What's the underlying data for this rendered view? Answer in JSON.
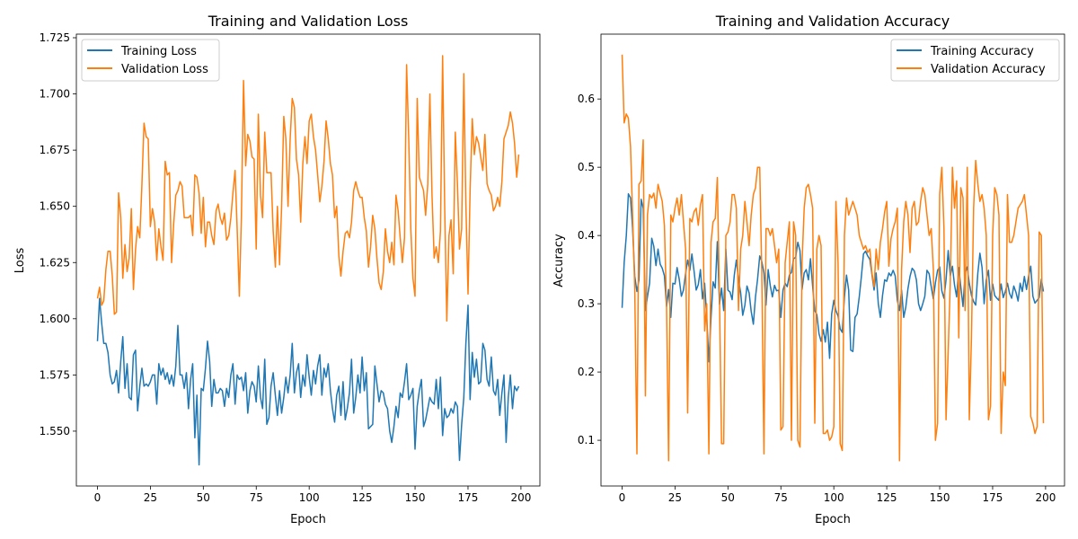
{
  "colors": {
    "training": "#1f77b4",
    "validation": "#ff7f0e"
  },
  "chart_data": [
    {
      "type": "line",
      "title": "Training and Validation Loss",
      "xlabel": "Epoch",
      "ylabel": "Loss",
      "xlim": [
        -9.95,
        208.95
      ],
      "ylim": [
        1.5256,
        1.7266
      ],
      "xticks": [
        0,
        25,
        50,
        75,
        100,
        125,
        150,
        175,
        200
      ],
      "yticks": [
        1.55,
        1.575,
        1.6,
        1.625,
        1.65,
        1.675,
        1.7,
        1.725
      ],
      "ytick_labels": [
        "1.550",
        "1.575",
        "1.600",
        "1.625",
        "1.650",
        "1.675",
        "1.700",
        "1.725"
      ],
      "grid": false,
      "legend": "upper-left",
      "series": [
        {
          "name": "Training Loss",
          "color": "#1f77b4",
          "values": [
            1.59,
            1.609,
            1.598,
            1.589,
            1.589,
            1.585,
            1.575,
            1.571,
            1.572,
            1.577,
            1.567,
            1.581,
            1.592,
            1.569,
            1.58,
            1.565,
            1.564,
            1.584,
            1.586,
            1.559,
            1.57,
            1.578,
            1.57,
            1.571,
            1.57,
            1.572,
            1.575,
            1.575,
            1.562,
            1.58,
            1.575,
            1.578,
            1.573,
            1.576,
            1.571,
            1.575,
            1.57,
            1.579,
            1.597,
            1.575,
            1.575,
            1.569,
            1.576,
            1.56,
            1.573,
            1.58,
            1.547,
            1.566,
            1.535,
            1.569,
            1.568,
            1.578,
            1.59,
            1.581,
            1.561,
            1.573,
            1.567,
            1.567,
            1.569,
            1.568,
            1.561,
            1.569,
            1.565,
            1.575,
            1.58,
            1.562,
            1.575,
            1.573,
            1.574,
            1.568,
            1.576,
            1.558,
            1.568,
            1.572,
            1.57,
            1.563,
            1.579,
            1.565,
            1.56,
            1.582,
            1.553,
            1.556,
            1.57,
            1.576,
            1.566,
            1.557,
            1.568,
            1.558,
            1.565,
            1.574,
            1.567,
            1.575,
            1.589,
            1.567,
            1.576,
            1.58,
            1.565,
            1.575,
            1.57,
            1.584,
            1.574,
            1.566,
            1.577,
            1.571,
            1.579,
            1.584,
            1.566,
            1.578,
            1.574,
            1.58,
            1.568,
            1.56,
            1.554,
            1.566,
            1.57,
            1.557,
            1.572,
            1.555,
            1.56,
            1.567,
            1.582,
            1.558,
            1.565,
            1.575,
            1.567,
            1.583,
            1.568,
            1.576,
            1.551,
            1.552,
            1.553,
            1.579,
            1.571,
            1.563,
            1.568,
            1.567,
            1.562,
            1.56,
            1.55,
            1.545,
            1.552,
            1.561,
            1.556,
            1.567,
            1.565,
            1.572,
            1.58,
            1.564,
            1.566,
            1.569,
            1.542,
            1.561,
            1.568,
            1.573,
            1.552,
            1.555,
            1.56,
            1.565,
            1.563,
            1.562,
            1.573,
            1.56,
            1.574,
            1.548,
            1.56,
            1.556,
            1.557,
            1.56,
            1.558,
            1.563,
            1.561,
            1.537,
            1.553,
            1.565,
            1.589,
            1.606,
            1.564,
            1.585,
            1.574,
            1.582,
            1.571,
            1.572,
            1.589,
            1.586,
            1.573,
            1.57,
            1.583,
            1.568,
            1.566,
            1.573,
            1.557,
            1.567,
            1.575,
            1.545,
            1.565,
            1.575,
            1.56,
            1.57,
            1.568,
            1.57
          ]
        },
        {
          "name": "Validation Loss",
          "color": "#ff7f0e",
          "values": [
            1.609,
            1.614,
            1.606,
            1.608,
            1.622,
            1.63,
            1.63,
            1.619,
            1.602,
            1.603,
            1.656,
            1.645,
            1.618,
            1.633,
            1.621,
            1.627,
            1.649,
            1.613,
            1.631,
            1.641,
            1.636,
            1.66,
            1.687,
            1.681,
            1.68,
            1.641,
            1.649,
            1.643,
            1.626,
            1.64,
            1.632,
            1.626,
            1.67,
            1.664,
            1.665,
            1.625,
            1.642,
            1.655,
            1.657,
            1.661,
            1.659,
            1.645,
            1.645,
            1.645,
            1.646,
            1.637,
            1.664,
            1.663,
            1.656,
            1.638,
            1.654,
            1.632,
            1.643,
            1.643,
            1.637,
            1.633,
            1.648,
            1.651,
            1.645,
            1.642,
            1.647,
            1.635,
            1.637,
            1.645,
            1.656,
            1.666,
            1.64,
            1.61,
            1.645,
            1.706,
            1.668,
            1.682,
            1.679,
            1.672,
            1.671,
            1.631,
            1.691,
            1.655,
            1.645,
            1.683,
            1.665,
            1.665,
            1.665,
            1.639,
            1.623,
            1.65,
            1.624,
            1.65,
            1.69,
            1.68,
            1.65,
            1.68,
            1.698,
            1.694,
            1.671,
            1.664,
            1.643,
            1.669,
            1.681,
            1.669,
            1.688,
            1.691,
            1.681,
            1.675,
            1.664,
            1.652,
            1.659,
            1.67,
            1.688,
            1.68,
            1.669,
            1.664,
            1.645,
            1.65,
            1.628,
            1.619,
            1.63,
            1.638,
            1.639,
            1.636,
            1.643,
            1.657,
            1.661,
            1.657,
            1.654,
            1.654,
            1.645,
            1.639,
            1.623,
            1.632,
            1.646,
            1.64,
            1.627,
            1.616,
            1.613,
            1.621,
            1.64,
            1.63,
            1.625,
            1.634,
            1.624,
            1.655,
            1.648,
            1.636,
            1.625,
            1.636,
            1.713,
            1.68,
            1.64,
            1.618,
            1.61,
            1.698,
            1.663,
            1.66,
            1.657,
            1.646,
            1.66,
            1.7,
            1.655,
            1.627,
            1.632,
            1.625,
            1.639,
            1.717,
            1.65,
            1.599,
            1.637,
            1.644,
            1.62,
            1.683,
            1.66,
            1.631,
            1.64,
            1.709,
            1.651,
            1.611,
            1.657,
            1.689,
            1.673,
            1.681,
            1.678,
            1.672,
            1.666,
            1.682,
            1.66,
            1.657,
            1.655,
            1.648,
            1.65,
            1.654,
            1.65,
            1.661,
            1.68,
            1.683,
            1.686,
            1.692,
            1.687,
            1.678,
            1.663,
            1.673
          ]
        }
      ]
    },
    {
      "type": "line",
      "title": "Training and Validation Accuracy",
      "xlabel": "Epoch",
      "ylabel": "Accuracy",
      "xlim": [
        -9.95,
        208.95
      ],
      "ylim": [
        0.033,
        0.695
      ],
      "xticks": [
        0,
        25,
        50,
        75,
        100,
        125,
        150,
        175,
        200
      ],
      "yticks": [
        0.1,
        0.2,
        0.3,
        0.4,
        0.5,
        0.6
      ],
      "ytick_labels": [
        "0.1",
        "0.2",
        "0.3",
        "0.4",
        "0.5",
        "0.6"
      ],
      "grid": false,
      "legend": "upper-right",
      "series": [
        {
          "name": "Training Accuracy",
          "color": "#1f77b4",
          "values": [
            0.294,
            0.36,
            0.4,
            0.461,
            0.455,
            0.41,
            0.34,
            0.318,
            0.335,
            0.453,
            0.44,
            0.29,
            0.31,
            0.33,
            0.396,
            0.384,
            0.356,
            0.38,
            0.358,
            0.352,
            0.341,
            0.296,
            0.321,
            0.28,
            0.33,
            0.329,
            0.353,
            0.336,
            0.311,
            0.32,
            0.344,
            0.364,
            0.349,
            0.373,
            0.348,
            0.32,
            0.328,
            0.35,
            0.307,
            0.33,
            0.28,
            0.215,
            0.28,
            0.332,
            0.323,
            0.391,
            0.299,
            0.323,
            0.29,
            0.38,
            0.32,
            0.317,
            0.306,
            0.342,
            0.364,
            0.335,
            0.316,
            0.283,
            0.298,
            0.326,
            0.316,
            0.289,
            0.27,
            0.31,
            0.336,
            0.37,
            0.362,
            0.345,
            0.298,
            0.35,
            0.326,
            0.31,
            0.327,
            0.319,
            0.32,
            0.28,
            0.32,
            0.33,
            0.325,
            0.342,
            0.346,
            0.366,
            0.368,
            0.39,
            0.378,
            0.321,
            0.345,
            0.35,
            0.335,
            0.366,
            0.326,
            0.29,
            0.284,
            0.256,
            0.245,
            0.262,
            0.244,
            0.273,
            0.22,
            0.285,
            0.305,
            0.29,
            0.282,
            0.263,
            0.258,
            0.31,
            0.342,
            0.32,
            0.232,
            0.23,
            0.28,
            0.285,
            0.31,
            0.339,
            0.373,
            0.377,
            0.37,
            0.365,
            0.343,
            0.32,
            0.345,
            0.3,
            0.28,
            0.312,
            0.335,
            0.333,
            0.345,
            0.341,
            0.349,
            0.341,
            0.305,
            0.29,
            0.32,
            0.28,
            0.295,
            0.322,
            0.34,
            0.352,
            0.348,
            0.335,
            0.3,
            0.29,
            0.3,
            0.311,
            0.349,
            0.344,
            0.325,
            0.307,
            0.331,
            0.349,
            0.354,
            0.319,
            0.308,
            0.335,
            0.378,
            0.341,
            0.355,
            0.328,
            0.31,
            0.353,
            0.324,
            0.296,
            0.345,
            0.354,
            0.33,
            0.312,
            0.303,
            0.298,
            0.345,
            0.374,
            0.353,
            0.3,
            0.335,
            0.349,
            0.305,
            0.329,
            0.312,
            0.308,
            0.305,
            0.329,
            0.309,
            0.318,
            0.33,
            0.315,
            0.308,
            0.326,
            0.317,
            0.304,
            0.33,
            0.318,
            0.34,
            0.321,
            0.34,
            0.355,
            0.311,
            0.301,
            0.305,
            0.309,
            0.336,
            0.318
          ]
        },
        {
          "name": "Validation Accuracy",
          "color": "#ff7f0e",
          "values": [
            0.665,
            0.565,
            0.578,
            0.572,
            0.53,
            0.43,
            0.32,
            0.08,
            0.475,
            0.48,
            0.54,
            0.165,
            0.43,
            0.46,
            0.455,
            0.462,
            0.44,
            0.475,
            0.462,
            0.45,
            0.415,
            0.295,
            0.07,
            0.43,
            0.42,
            0.44,
            0.455,
            0.43,
            0.46,
            0.42,
            0.38,
            0.14,
            0.425,
            0.42,
            0.435,
            0.44,
            0.415,
            0.445,
            0.46,
            0.26,
            0.3,
            0.08,
            0.39,
            0.42,
            0.425,
            0.485,
            0.31,
            0.095,
            0.095,
            0.4,
            0.405,
            0.42,
            0.46,
            0.46,
            0.44,
            0.29,
            0.38,
            0.4,
            0.45,
            0.42,
            0.385,
            0.43,
            0.46,
            0.47,
            0.5,
            0.5,
            0.345,
            0.08,
            0.41,
            0.41,
            0.4,
            0.41,
            0.385,
            0.36,
            0.38,
            0.115,
            0.12,
            0.36,
            0.39,
            0.42,
            0.1,
            0.42,
            0.4,
            0.1,
            0.09,
            0.36,
            0.44,
            0.47,
            0.475,
            0.46,
            0.44,
            0.125,
            0.38,
            0.4,
            0.385,
            0.11,
            0.11,
            0.115,
            0.1,
            0.105,
            0.12,
            0.45,
            0.36,
            0.095,
            0.085,
            0.4,
            0.455,
            0.43,
            0.44,
            0.45,
            0.44,
            0.43,
            0.4,
            0.39,
            0.38,
            0.385,
            0.375,
            0.38,
            0.345,
            0.325,
            0.38,
            0.35,
            0.39,
            0.41,
            0.435,
            0.45,
            0.355,
            0.395,
            0.41,
            0.42,
            0.44,
            0.07,
            0.35,
            0.42,
            0.45,
            0.43,
            0.375,
            0.44,
            0.45,
            0.415,
            0.42,
            0.45,
            0.47,
            0.46,
            0.43,
            0.4,
            0.41,
            0.35,
            0.1,
            0.125,
            0.46,
            0.5,
            0.41,
            0.13,
            0.23,
            0.33,
            0.5,
            0.44,
            0.48,
            0.25,
            0.47,
            0.455,
            0.29,
            0.5,
            0.13,
            0.25,
            0.44,
            0.51,
            0.475,
            0.45,
            0.46,
            0.44,
            0.4,
            0.13,
            0.15,
            0.4,
            0.47,
            0.46,
            0.43,
            0.11,
            0.2,
            0.18,
            0.46,
            0.39,
            0.39,
            0.4,
            0.42,
            0.44,
            0.445,
            0.45,
            0.46,
            0.43,
            0.4,
            0.135,
            0.125,
            0.11,
            0.12,
            0.405,
            0.4,
            0.125
          ]
        }
      ]
    }
  ]
}
